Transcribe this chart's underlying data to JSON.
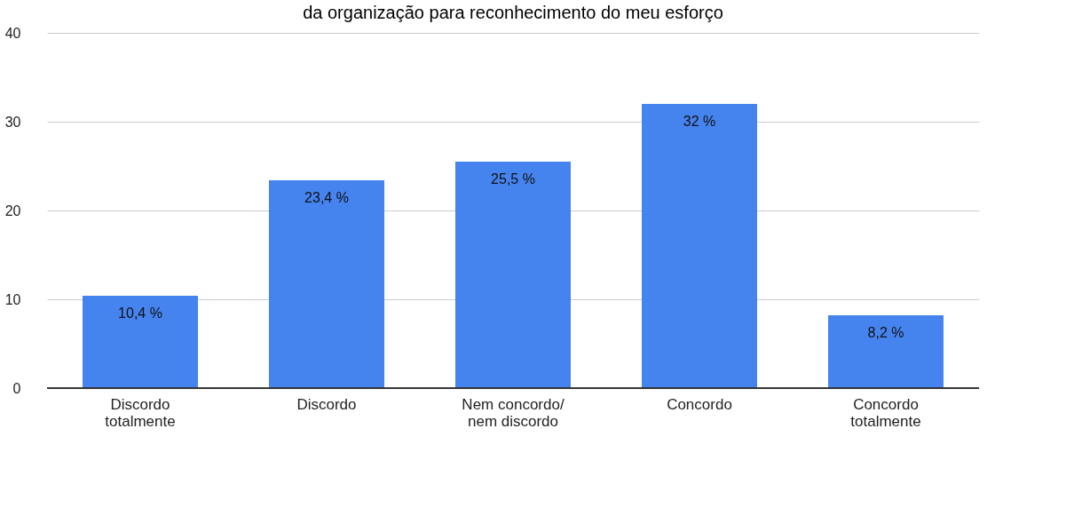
{
  "chart_data": {
    "type": "bar",
    "title": "da organização para reconhecimento do meu esforço",
    "categories": [
      "Discordo totalmente",
      "Discordo",
      "Nem concordo/nem discordo",
      "Concordo",
      "Concordo totalmente"
    ],
    "values": [
      10.4,
      23.4,
      25.5,
      32,
      8.2
    ],
    "color": "#4583ee",
    "value_labels": [
      "10,4 %",
      "23,4 %",
      "25,5 %",
      "32 %",
      "8,2 %"
    ],
    "ylim": [
      0,
      40
    ],
    "yticks": [
      0,
      10,
      20,
      30,
      40
    ],
    "grid": "y"
  }
}
